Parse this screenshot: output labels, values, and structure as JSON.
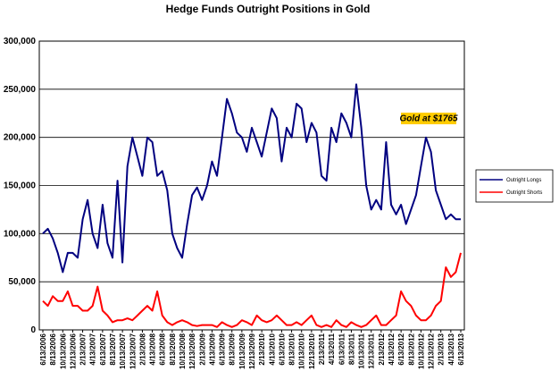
{
  "chart_data": {
    "type": "line",
    "title": "Hedge Funds Outright Positions in Gold",
    "annotation": "Gold at $1765",
    "annotation_color": "#ffcc00",
    "grid": true,
    "legend": "right",
    "ylim": [
      0,
      300000
    ],
    "yticks": [
      0,
      {
        "value": 50000,
        "label": "50,000"
      },
      {
        "value": 100000,
        "label": "100,000"
      },
      {
        "value": 150000,
        "label": "150,000"
      },
      {
        "value": 200000,
        "label": "200,000"
      },
      {
        "value": 250000,
        "label": "250,000"
      },
      {
        "value": 300000,
        "label": "300,000"
      }
    ],
    "categories": [
      "6/13/2006",
      null,
      "8/13/2006",
      null,
      "10/13/2006",
      null,
      "12/13/2006",
      null,
      "2/13/2007",
      null,
      "4/13/2007",
      null,
      "6/13/2007",
      null,
      "8/13/2007",
      null,
      "10/13/2007",
      null,
      "12/13/2007",
      null,
      "2/13/2008",
      null,
      "4/13/2008",
      null,
      "6/13/2008",
      null,
      "8/13/2008",
      null,
      "10/13/2008",
      null,
      "12/13/2008",
      null,
      "2/13/2009",
      null,
      "4/13/2009",
      null,
      "6/13/2009",
      null,
      "8/13/2009",
      null,
      "10/13/2009",
      null,
      "12/13/2009",
      null,
      "2/13/2010",
      null,
      "4/13/2010",
      null,
      "6/13/2010",
      null,
      "8/13/2010",
      null,
      "10/13/2010",
      null,
      "12/13/2010",
      null,
      "2/13/2011",
      null,
      "4/13/2011",
      null,
      "6/13/2011",
      null,
      "8/13/2011",
      null,
      "10/13/2011",
      null,
      "12/13/2011",
      null,
      "2/13/2012",
      null,
      "4/13/2012",
      null,
      "6/13/2012",
      null,
      "8/13/2012",
      null,
      "10/13/2012",
      null,
      "12/13/2012",
      null,
      "2/13/2013",
      null,
      "4/13/2013",
      null,
      "6/13/2013"
    ],
    "series": [
      {
        "name": "Outright Longs",
        "color": "#000080",
        "values": [
          100000,
          105000,
          95000,
          80000,
          60000,
          80000,
          80000,
          75000,
          115000,
          135000,
          100000,
          85000,
          130000,
          90000,
          75000,
          155000,
          70000,
          170000,
          200000,
          180000,
          160000,
          200000,
          195000,
          160000,
          165000,
          145000,
          100000,
          85000,
          75000,
          110000,
          140000,
          148000,
          135000,
          150000,
          175000,
          160000,
          200000,
          240000,
          225000,
          205000,
          200000,
          185000,
          210000,
          195000,
          180000,
          205000,
          230000,
          220000,
          175000,
          210000,
          200000,
          235000,
          230000,
          195000,
          215000,
          205000,
          160000,
          155000,
          210000,
          195000,
          225000,
          215000,
          200000,
          255000,
          210000,
          150000,
          125000,
          135000,
          125000,
          195000,
          130000,
          120000,
          130000,
          110000,
          125000,
          140000,
          170000,
          200000,
          185000,
          145000,
          130000,
          115000,
          120000,
          115000,
          115000
        ]
      },
      {
        "name": "Outright Shorts",
        "color": "#ff0000",
        "values": [
          30000,
          25000,
          35000,
          30000,
          30000,
          40000,
          25000,
          25000,
          20000,
          20000,
          25000,
          45000,
          20000,
          15000,
          8000,
          10000,
          10000,
          12000,
          10000,
          15000,
          20000,
          25000,
          20000,
          40000,
          15000,
          8000,
          5000,
          8000,
          10000,
          8000,
          5000,
          4000,
          5000,
          5000,
          5000,
          3000,
          8000,
          5000,
          3000,
          5000,
          10000,
          8000,
          5000,
          15000,
          10000,
          8000,
          10000,
          15000,
          10000,
          5000,
          5000,
          8000,
          5000,
          10000,
          15000,
          5000,
          3000,
          5000,
          3000,
          10000,
          5000,
          3000,
          8000,
          5000,
          3000,
          5000,
          10000,
          15000,
          5000,
          5000,
          10000,
          15000,
          40000,
          30000,
          25000,
          15000,
          10000,
          10000,
          15000,
          25000,
          30000,
          65000,
          55000,
          60000,
          80000
        ]
      }
    ]
  }
}
